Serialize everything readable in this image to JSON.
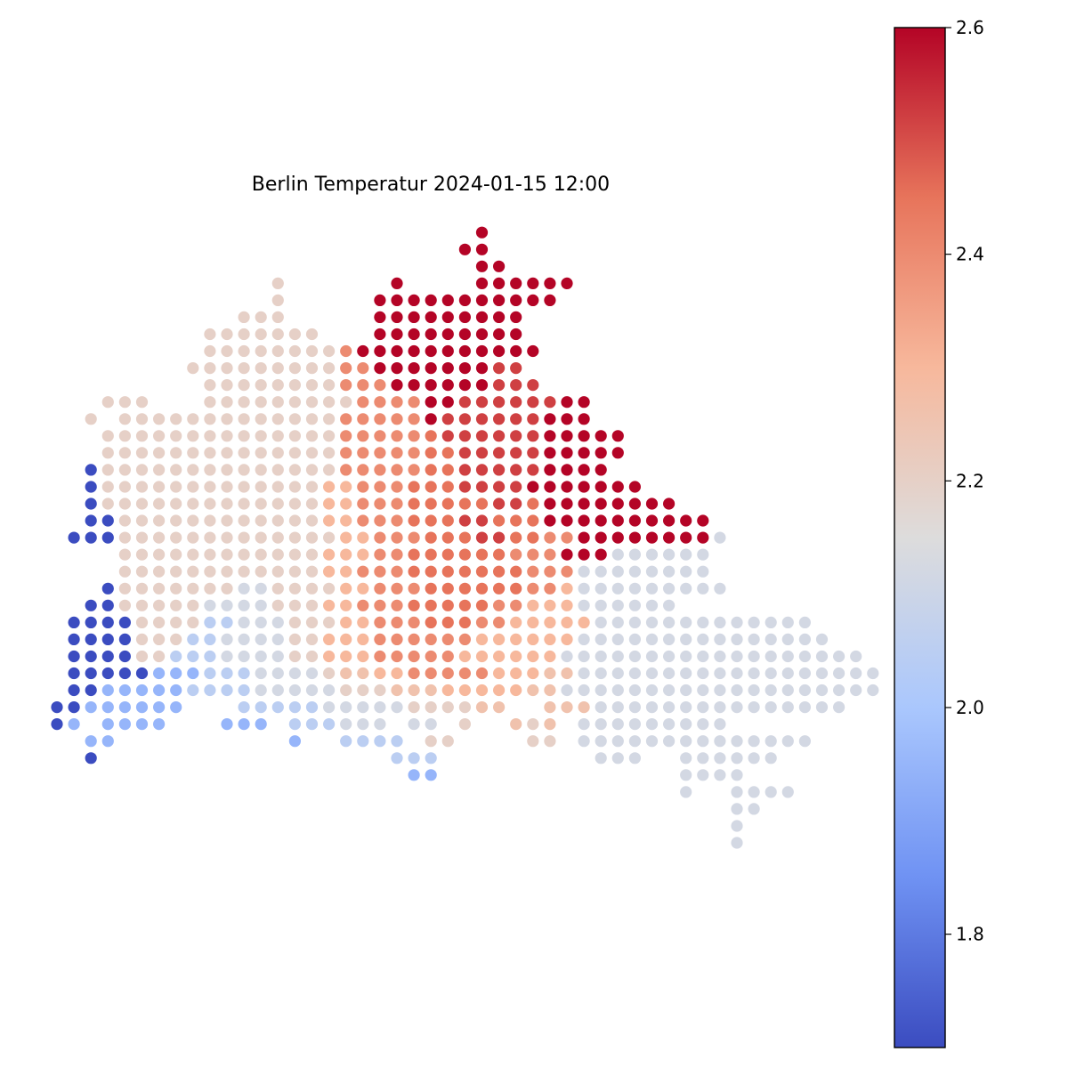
{
  "chart_data": {
    "type": "scatter",
    "title": "Berlin Temperatur 2024-01-15 12:00",
    "colormap": "coolwarm",
    "colormap_stops": [
      "#3b4cc0",
      "#6f92f3",
      "#aac7fd",
      "#dddcdc",
      "#f7b89c",
      "#e7745b",
      "#b40426"
    ],
    "color_range": [
      1.7,
      2.6
    ],
    "colorbar_ticks": [
      "1.8",
      "2.0",
      "2.2",
      "2.4",
      "2.6"
    ],
    "colorbar_tick_values": [
      1.8,
      2.0,
      2.2,
      2.4,
      2.6
    ],
    "axes_visible": false,
    "grid": false,
    "x_range": [
      0,
      45
    ],
    "y_range": [
      0,
      37
    ],
    "value_key": {
      "a": 1.7,
      "b": 1.95,
      "c": 2.05,
      "d": 2.12,
      "e": 2.2,
      "f": 2.26,
      "g": 2.3,
      "h": 2.4,
      "i": 2.45,
      "j": 2.52,
      "k": 2.6
    },
    "rows": [
      {
        "y": 36,
        "x0": 25,
        "v": "k"
      },
      {
        "y": 35,
        "x0": 24,
        "v": "kk"
      },
      {
        "y": 34,
        "x0": 25,
        "v": "kk"
      },
      {
        "y": 33,
        "x0": 13,
        "v": "e"
      },
      {
        "y": 33,
        "x0": 20,
        "v": "k....kkkkkk"
      },
      {
        "y": 32,
        "x0": 13,
        "v": "e"
      },
      {
        "y": 32,
        "x0": 19,
        "v": "kkkkkkkkkkk"
      },
      {
        "y": 31,
        "x0": 11,
        "v": "eee"
      },
      {
        "y": 31,
        "x0": 19,
        "v": "kkkkkkkkk"
      },
      {
        "y": 30,
        "x0": 9,
        "v": "eeeeeee"
      },
      {
        "y": 30,
        "x0": 19,
        "v": "kkkkkkkkk"
      },
      {
        "y": 29,
        "x0": 9,
        "v": "eeeeeeeehkkkkkkkkkkk"
      },
      {
        "y": 28,
        "x0": 8,
        "v": "eeeeeeeeehhkkkkkkkjj"
      },
      {
        "y": 27,
        "x0": 9,
        "v": "eeeeeeeehhhkkkkkkjjj"
      },
      {
        "y": 26,
        "x0": 3,
        "v": "eee...eeeeeeeeehhhhkkjjjjjjkk"
      },
      {
        "y": 25,
        "x0": 2,
        "v": "e.eeeeeeeeeeeeehhhhhkjjjjjjkkk"
      },
      {
        "y": 24,
        "x0": 3,
        "v": "eeeeeeeeeeeeeehhhhhijjjjjjkkkkk"
      },
      {
        "y": 23,
        "x0": 3,
        "v": "eeeeeeeeeeeeeehhhhhiijjjjjkkkkk"
      },
      {
        "y": 22,
        "x0": 2,
        "v": "aeeeeeeeeeeeeeehhhhhiijjjjjkkkk"
      },
      {
        "y": 21,
        "x0": 2,
        "v": "aeeeeeeeeeeeeegghhhiiijjjjkkkkkkk"
      },
      {
        "y": 20,
        "x0": 2,
        "v": "aeeeeeeeeeeeeegghhhiiiiijjikkkkkkkk"
      },
      {
        "y": 19,
        "x0": 2,
        "v": "aaeeeeeeeeeeeegghhhiiijjiiikkkkkkkkkk"
      },
      {
        "y": 18,
        "x0": 1,
        "v": "aaaeeeeeeeeeeeeegghhhiiijjiihhkkkkkkkkd"
      },
      {
        "y": 17,
        "x0": 4,
        "v": "eeeeeeeeeeeeggghhiiiiiihhhkkkdddddd"
      },
      {
        "y": 16,
        "x0": 4,
        "v": "eeeeeeeeeeeegghhhiiiiiiihhhdddddddd"
      },
      {
        "y": 15,
        "x0": 3,
        "v": "aeeeeeeeddeeeegghhhiiiiiihhgddddddddd"
      },
      {
        "y": 14,
        "x0": 2,
        "v": "aaeeeeeddddeeegghhhiiiiihhgggdddddd"
      },
      {
        "y": 13,
        "x0": 1,
        "v": "aaaaeeeeccdddeeegghhhiiihhgggggddddddddddddd"
      },
      {
        "y": 12,
        "x0": 1,
        "v": "aaaaeeeccddddeeggghhhhhhggggggddddddddddddddd"
      },
      {
        "y": 11,
        "x0": 1,
        "v": "aaaaeecccddddeeggghhhhhggggggdddddddddddddddddd"
      },
      {
        "y": 10,
        "x0": 1,
        "v": "aaaaabbbcccddddeffgghhhhhgggffdddddddddddddddddd"
      },
      {
        "y": 9,
        "x0": 1,
        "v": "aabbbbbccccdddddeeefffgggggffddddddddddddddddddd"
      },
      {
        "y": 8,
        "x0": 0,
        "v": "aabbbbbb...cccccdddddeeeeff..fffddddddddddddddd"
      },
      {
        "y": 7,
        "x0": 0,
        "v": "ab"
      },
      {
        "y": 7,
        "x0": 3,
        "v": "bbbb"
      },
      {
        "y": 7,
        "x0": 10,
        "v": "bbb"
      },
      {
        "y": 7,
        "x0": 14,
        "v": "ccc"
      },
      {
        "y": 7,
        "x0": 17,
        "v": "ddd"
      },
      {
        "y": 7,
        "x0": 21,
        "v": "dd.e"
      },
      {
        "y": 7,
        "x0": 27,
        "v": "fef"
      },
      {
        "y": 7,
        "x0": 31,
        "v": "ddddddddd"
      },
      {
        "y": 6,
        "x0": 2,
        "v": "bb"
      },
      {
        "y": 6,
        "x0": 14,
        "v": "b"
      },
      {
        "y": 6,
        "x0": 17,
        "v": "cccc"
      },
      {
        "y": 6,
        "x0": 22,
        "v": "ee"
      },
      {
        "y": 6,
        "x0": 28,
        "v": "ee"
      },
      {
        "y": 6,
        "x0": 31,
        "v": "dddddddddddddd"
      },
      {
        "y": 5,
        "x0": 2,
        "v": "a"
      },
      {
        "y": 5,
        "x0": 20,
        "v": "ccc"
      },
      {
        "y": 5,
        "x0": 32,
        "v": "ddd"
      },
      {
        "y": 5,
        "x0": 37,
        "v": "dddddd"
      },
      {
        "y": 4,
        "x0": 21,
        "v": "bb"
      },
      {
        "y": 4,
        "x0": 37,
        "v": "dddd"
      },
      {
        "y": 3,
        "x0": 37,
        "v": "d"
      },
      {
        "y": 3,
        "x0": 40,
        "v": "dddd"
      },
      {
        "y": 2,
        "x0": 40,
        "v": "dd"
      },
      {
        "y": 1,
        "x0": 40,
        "v": "d"
      },
      {
        "y": 0,
        "x0": 40,
        "v": "d"
      }
    ]
  }
}
